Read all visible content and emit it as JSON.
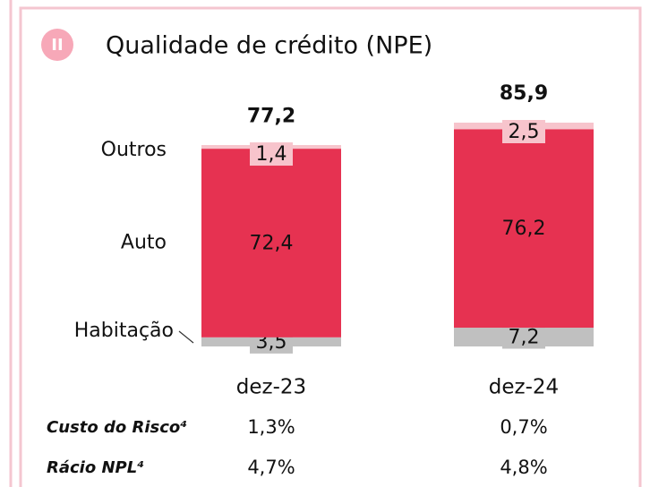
{
  "chart_data": {
    "type": "stacked_bar",
    "badge": "II",
    "title": "Qualidade de crédito (NPE)",
    "categories": [
      "dez-23",
      "dez-24"
    ],
    "series": [
      {
        "name": "Habitação",
        "color": "#c0c0c0",
        "values": [
          3.5,
          7.2
        ],
        "value_labels": [
          "3,5",
          "7,2"
        ]
      },
      {
        "name": "Auto",
        "color": "#e63251",
        "values": [
          72.4,
          76.2
        ],
        "value_labels": [
          "72,4",
          "76,2"
        ]
      },
      {
        "name": "Outros",
        "color": "#f7c4cc",
        "values": [
          1.4,
          2.5
        ],
        "value_labels": [
          "1,4",
          "2,5"
        ]
      }
    ],
    "totals": [
      77.2,
      85.9
    ],
    "total_labels": [
      "77,2",
      "85,9"
    ],
    "metrics": [
      {
        "label": "Custo do Risco⁴",
        "values": [
          1.3,
          0.7
        ],
        "value_labels": [
          "1,3%",
          "0,7%"
        ]
      },
      {
        "label": "Rácio NPL⁴",
        "values": [
          4.7,
          4.8
        ],
        "value_labels": [
          "4,7%",
          "4,8%"
        ]
      }
    ]
  }
}
